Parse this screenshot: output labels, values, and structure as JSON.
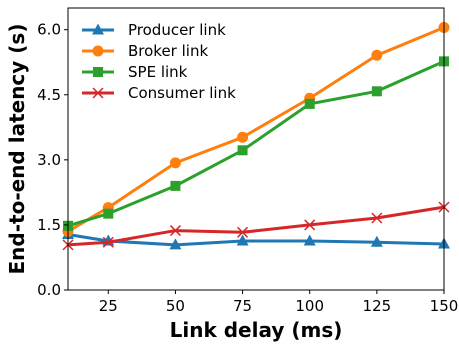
{
  "chart_data": {
    "type": "line",
    "xlabel": "Link delay (ms)",
    "ylabel": "End-to-end latency (s)",
    "x": [
      10,
      25,
      50,
      75,
      100,
      125,
      150
    ],
    "xlim": [
      10,
      150
    ],
    "ylim": [
      0,
      6.5
    ],
    "xticks": [
      25,
      50,
      75,
      100,
      125,
      150
    ],
    "yticks": [
      0.0,
      1.5,
      3.0,
      4.5,
      6.0
    ],
    "xtick_labels": [
      "25",
      "50",
      "75",
      "100",
      "125",
      "150"
    ],
    "ytick_labels": [
      "0.0",
      "1.5",
      "3.0",
      "4.5",
      "6.0"
    ],
    "grid": false,
    "legend_position": "top-left",
    "series": [
      {
        "name": "Producer link",
        "color": "#1f77b4",
        "marker": "triangle-up",
        "values": [
          1.28,
          1.13,
          1.04,
          1.13,
          1.13,
          1.1,
          1.06
        ]
      },
      {
        "name": "Broker link",
        "color": "#ff7f0e",
        "marker": "circle",
        "values": [
          1.35,
          1.9,
          2.93,
          3.52,
          4.42,
          5.41,
          6.05
        ]
      },
      {
        "name": "SPE link",
        "color": "#2ca02c",
        "marker": "square",
        "values": [
          1.48,
          1.76,
          2.4,
          3.22,
          4.29,
          4.58,
          5.27
        ]
      },
      {
        "name": "Consumer link",
        "color": "#d62728",
        "marker": "x",
        "values": [
          1.04,
          1.1,
          1.37,
          1.33,
          1.5,
          1.66,
          1.91
        ]
      }
    ]
  }
}
